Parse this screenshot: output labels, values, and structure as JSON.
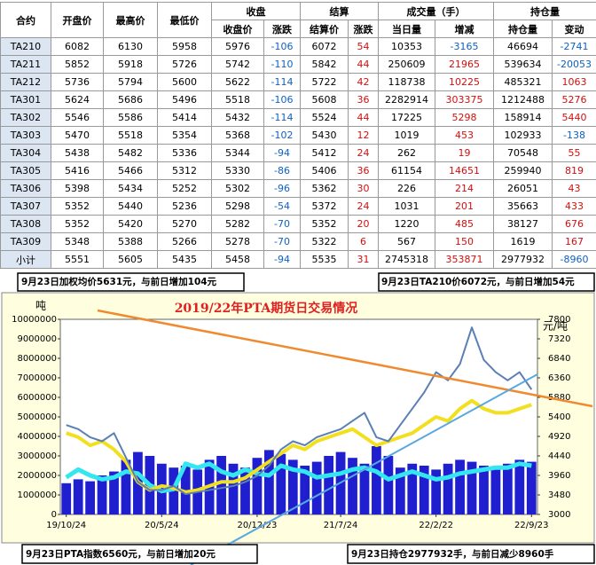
{
  "table": {
    "group_headers": [
      "合约",
      "开盘价",
      "最高价",
      "最低价",
      "收盘",
      "结算",
      "成交量（手）",
      "持仓量"
    ],
    "headers": [
      "收盘价",
      "涨跌",
      "结算价",
      "涨跌",
      "当日量",
      "增减",
      "持仓量",
      "变动"
    ],
    "rows": [
      [
        "TA210",
        6082,
        6130,
        5958,
        5976,
        -106,
        6072,
        54,
        10353,
        -3165,
        46694,
        -2741
      ],
      [
        "TA211",
        5852,
        5918,
        5726,
        5742,
        -110,
        5842,
        44,
        250609,
        21965,
        539634,
        -20053
      ],
      [
        "TA212",
        5736,
        5794,
        5600,
        5622,
        -114,
        5722,
        42,
        118738,
        10225,
        485321,
        1063
      ],
      [
        "TA301",
        5624,
        5686,
        5496,
        5518,
        -106,
        5608,
        36,
        2282914,
        303375,
        1212488,
        5276
      ],
      [
        "TA302",
        5546,
        5586,
        5414,
        5432,
        -114,
        5524,
        44,
        17225,
        5298,
        158914,
        5440
      ],
      [
        "TA303",
        5470,
        5518,
        5354,
        5368,
        -102,
        5430,
        12,
        1019,
        453,
        102933,
        -138
      ],
      [
        "TA304",
        5438,
        5482,
        5336,
        5344,
        -94,
        5412,
        24,
        262,
        19,
        70548,
        55
      ],
      [
        "TA305",
        5416,
        5466,
        5312,
        5330,
        -86,
        5406,
        36,
        61154,
        14651,
        259940,
        819
      ],
      [
        "TA306",
        5398,
        5434,
        5252,
        5302,
        -96,
        5362,
        30,
        226,
        214,
        26051,
        43
      ],
      [
        "TA307",
        5352,
        5440,
        5236,
        5298,
        -54,
        5372,
        24,
        1031,
        201,
        35663,
        433
      ],
      [
        "TA308",
        5352,
        5420,
        5270,
        5282,
        -70,
        5352,
        20,
        1220,
        485,
        38127,
        676
      ],
      [
        "TA309",
        5348,
        5388,
        5266,
        5278,
        -70,
        5322,
        6,
        567,
        150,
        1619,
        167
      ],
      [
        "小计",
        5551,
        5605,
        5435,
        5458,
        -94,
        5535,
        31,
        2745318,
        353871,
        2977932,
        -8960
      ]
    ]
  },
  "chart_data": {
    "type": "combo",
    "title": "2019/22年PTA期货日交易情况",
    "y_label": "吨",
    "y2_label": "元/吨",
    "annotations": [
      "9月23日加权均价5631元，与前日增加104元",
      "9月23日TA210价6072元，与前日增加54元",
      "9月23日PTA指数6560元，与前日增加20元",
      "9月23日持仓2977932手，与前日减少8960手"
    ],
    "xticks": [
      {
        "value": 0,
        "label": "19/10/24"
      },
      {
        "value": 8,
        "label": "20/5/24"
      },
      {
        "value": 16,
        "label": "20/12/23"
      },
      {
        "value": 23,
        "label": "21/7/24"
      },
      {
        "value": 31,
        "label": "22/2/22"
      },
      {
        "value": 39,
        "label": "22/9/23"
      }
    ],
    "xlim": [
      -0.5,
      39.5
    ],
    "ylim": [
      0,
      10000000
    ],
    "yticks": [
      0,
      1000000,
      2000000,
      3000000,
      4000000,
      5000000,
      6000000,
      7000000,
      8000000,
      9000000,
      10000000
    ],
    "y2lim": [
      3000,
      7800
    ],
    "y2ticks": [
      3000,
      3480,
      3960,
      4440,
      4920,
      5400,
      5880,
      6360,
      6840,
      7320,
      7800
    ],
    "series": [
      {
        "kind": "bar",
        "axis": "y",
        "color": "#1f1fd0",
        "values": [
          1600000,
          1800000,
          1700000,
          2000000,
          2200000,
          2800000,
          3200000,
          3000000,
          2600000,
          2400000,
          2500000,
          2300000,
          2800000,
          3000000,
          2600000,
          2400000,
          2900000,
          3300000,
          3100000,
          2800000,
          2500000,
          2700000,
          3000000,
          3200000,
          2900000,
          2600000,
          3500000,
          3000000,
          2400000,
          2600000,
          2500000,
          2300000,
          2600000,
          2800000,
          2700000,
          2500000,
          2400000,
          2600000,
          2800000,
          2700000
        ]
      },
      {
        "kind": "line",
        "axis": "y",
        "color": "#33e6f0",
        "width": 5,
        "values": [
          1900000,
          2300000,
          2000000,
          1800000,
          1900000,
          2200000,
          2100000,
          1500000,
          1200000,
          1300000,
          2600000,
          2400000,
          2600000,
          2200000,
          2000000,
          2300000,
          2100000,
          2000000,
          2500000,
          2300000,
          2200000,
          1900000,
          2000000,
          2100000,
          2300000,
          2400000,
          2200000,
          1800000,
          2000000,
          2200000,
          2000000,
          1800000,
          1900000,
          2100000,
          2200000,
          2300000,
          2400000,
          2400000,
          2600000,
          2500000
        ]
      },
      {
        "kind": "line",
        "axis": "y2",
        "color": "#f2e020",
        "width": 4,
        "values": [
          5000,
          4900,
          4700,
          4800,
          4600,
          4300,
          3800,
          3600,
          3700,
          3650,
          3550,
          3600,
          3700,
          3800,
          3800,
          3900,
          4100,
          4300,
          4500,
          4700,
          4600,
          4800,
          4900,
          5000,
          5100,
          4900,
          4700,
          4800,
          4900,
          5000,
          5200,
          5400,
          5300,
          5600,
          5800,
          5600,
          5500,
          5500,
          5600,
          5700
        ]
      },
      {
        "kind": "line",
        "axis": "y2",
        "color": "#5b7fb5",
        "width": 2,
        "values": [
          5200,
          5100,
          4900,
          4800,
          5000,
          4400,
          3800,
          3600,
          3600,
          3700,
          3500,
          3550,
          3600,
          3650,
          3700,
          3800,
          3950,
          4200,
          4600,
          4800,
          4700,
          4900,
          5000,
          5100,
          5300,
          5500,
          4900,
          4800,
          5200,
          5600,
          6000,
          6500,
          6300,
          6700,
          7600,
          6800,
          6500,
          6300,
          6500,
          6072
        ]
      }
    ]
  }
}
